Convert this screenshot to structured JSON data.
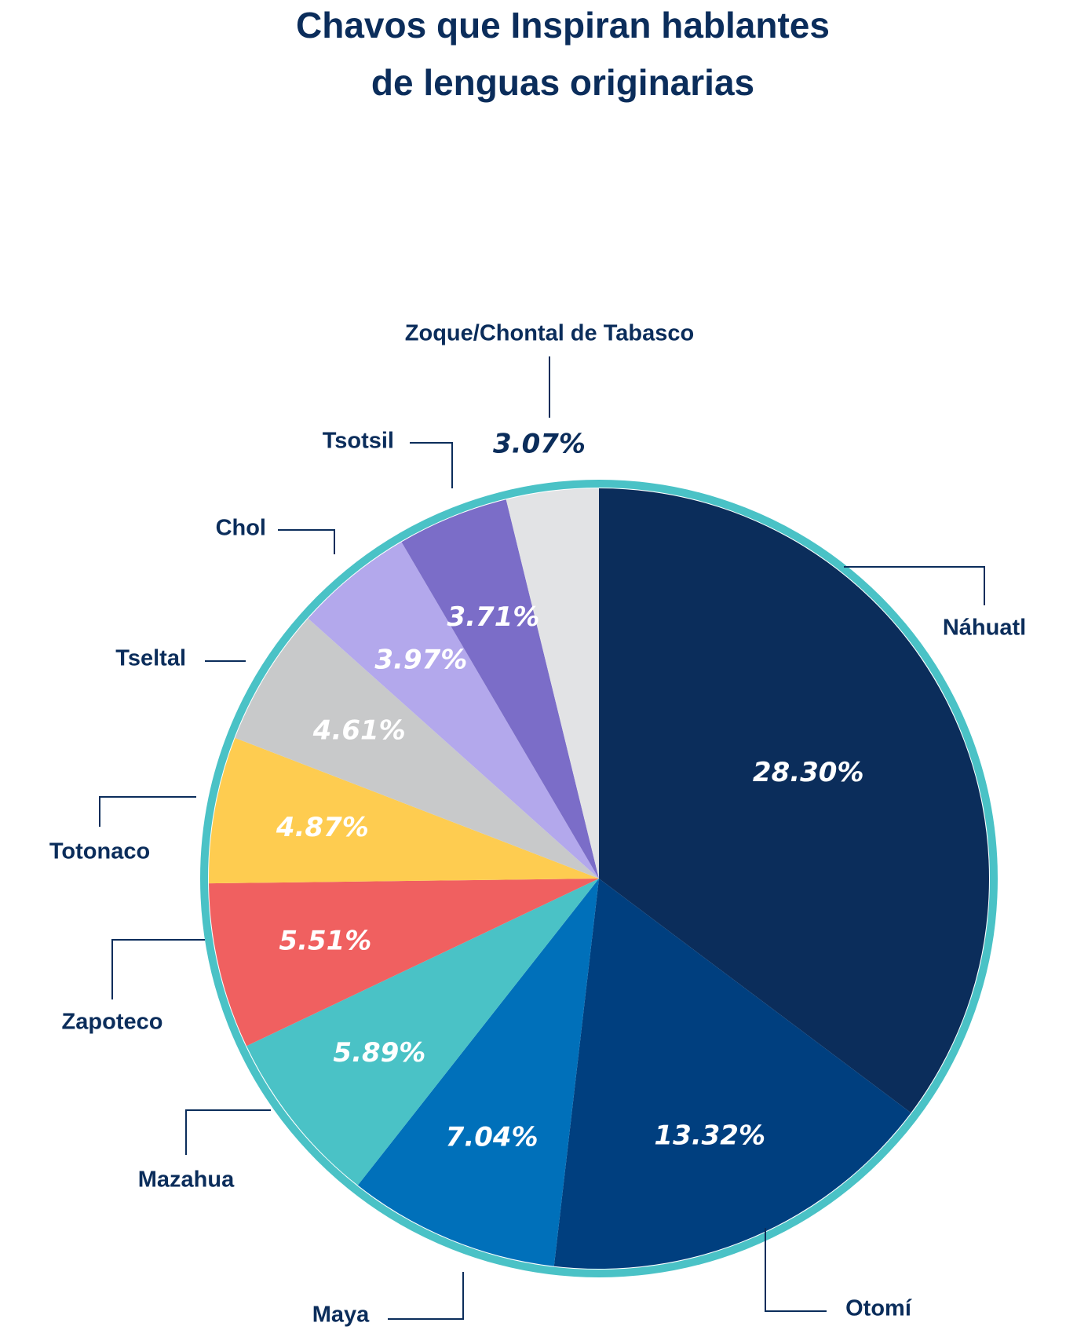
{
  "chart_data": {
    "type": "pie",
    "title": [
      "Chavos que Inspiran hablantes",
      "de lenguas originarias"
    ],
    "categories": [
      "Náhuatl",
      "Otomí",
      "Maya",
      "Mazahua",
      "Zapoteco",
      "Totonaco",
      "Tseltal",
      "Chol",
      "Tsotsil",
      "Zoque/Chontal de Tabasco"
    ],
    "values": [
      28.3,
      13.32,
      7.04,
      5.89,
      5.51,
      4.87,
      4.61,
      3.97,
      3.71,
      3.07
    ],
    "value_labels": [
      "28.30%",
      "13.32%",
      "7.04%",
      "5.89%",
      "5.51%",
      "4.87%",
      "4.61%",
      "3.97%",
      "3.71%",
      "3.07%"
    ],
    "colors": [
      "#0b2d5b",
      "#003f7f",
      "#0070ba",
      "#4ac2c6",
      "#f06060",
      "#fecc50",
      "#c8c9ca",
      "#b3a8ec",
      "#7b6dc8",
      "#e2e3e5"
    ]
  }
}
